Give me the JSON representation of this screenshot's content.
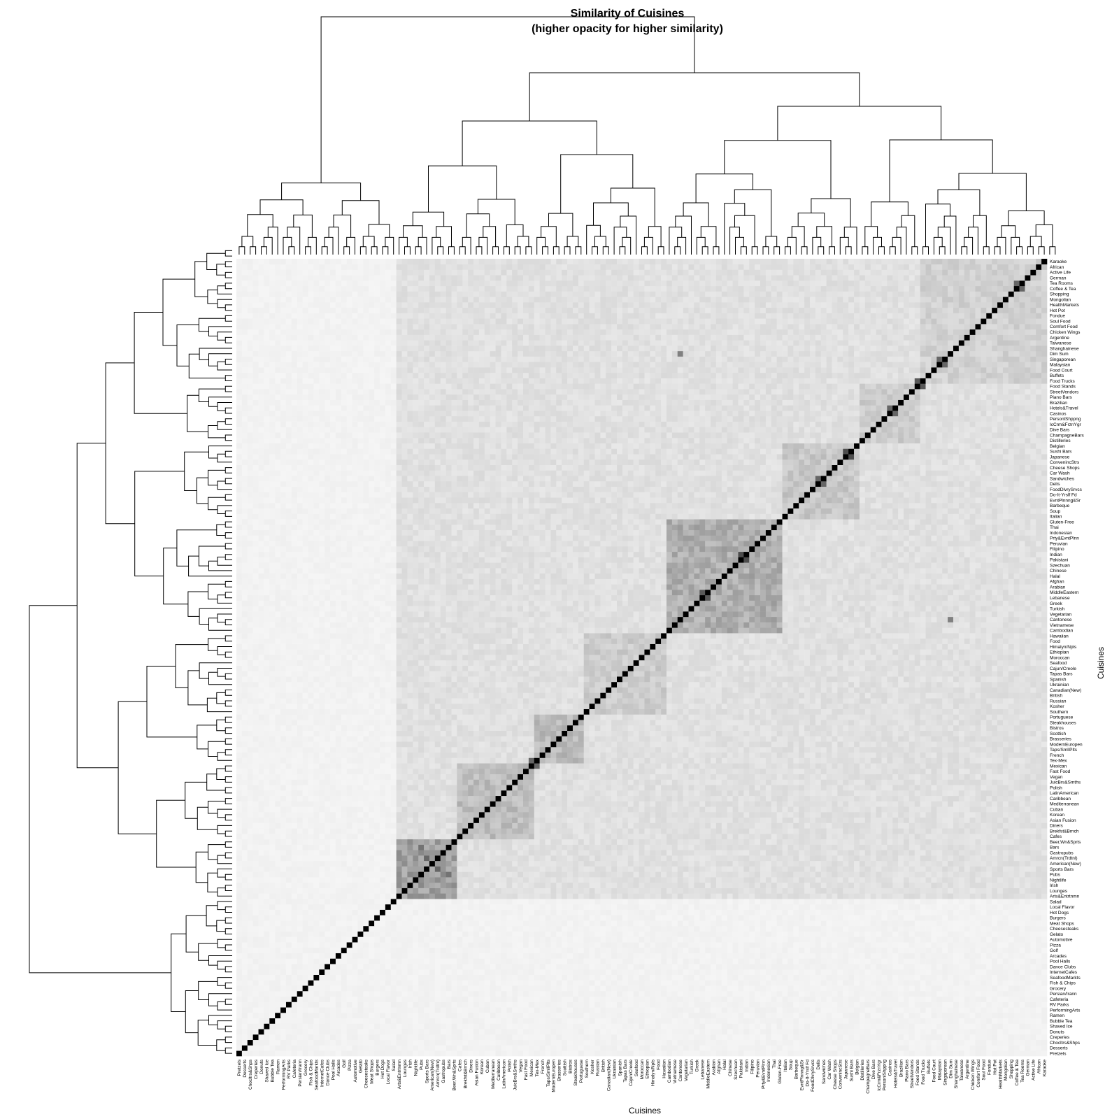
{
  "chart_data": {
    "type": "heatmap",
    "title": "Similarity of Cuisines",
    "subtitle": "(higher opacity for higher similarity)",
    "xlabel": "Cuisines",
    "ylabel": "Cuisines",
    "colors": {
      "low": "#ffffff",
      "high": "#000000"
    },
    "legend": "none",
    "has_row_dendrogram": true,
    "has_column_dendrogram": true,
    "categories": [
      "Pretzels",
      "Desserts",
      "Chocltrs&Shps",
      "Creperies",
      "Donuts",
      "Shaved Ice",
      "Bubble Tea",
      "Ramen",
      "PerformingArts",
      "RV Parks",
      "Cafeteria",
      "Persian/Irann",
      "Grocery",
      "Fish & Chips",
      "SeafoodMarkts",
      "InternetCafes",
      "Dance Clubs",
      "Pool Halls",
      "Arcades",
      "Golf",
      "Pizza",
      "Automotive",
      "Gelato",
      "Cheesesteaks",
      "Meat Shops",
      "Burgers",
      "Hot Dogs",
      "Local Flavor",
      "Salad",
      "Arts&Entrtnmn",
      "Lounges",
      "Irish",
      "Nightlife",
      "Pubs",
      "Sports Bars",
      "American(New)",
      "Amrcn(Trdtnl)",
      "Gastropubs",
      "Bars",
      "Beer,Wn&Sprts",
      "Cafes",
      "Brekfst&Brnch",
      "Diners",
      "Asian Fusion",
      "Korean",
      "Cuban",
      "Mediterranean",
      "Caribbean",
      "LatinAmerican",
      "Polish",
      "JuicBrs&Smths",
      "Vegan",
      "Fast Food",
      "Mexican",
      "Tex-Mex",
      "French",
      "Taps/SmllPlts",
      "ModernEuropen",
      "Brasseries",
      "Scottish",
      "Bistros",
      "Steakhouses",
      "Portuguese",
      "Southern",
      "Kosher",
      "Russian",
      "British",
      "Canadian(New)",
      "Ukrainian",
      "Spanish",
      "Tapas Bars",
      "Cajun/Creole",
      "Seafood",
      "Moroccan",
      "Ethiopian",
      "Himalyn/Npls",
      "Food",
      "Hawaiian",
      "Cambodian",
      "Vietnamese",
      "Cantonese",
      "Vegetarian",
      "Turkish",
      "Greek",
      "Lebanese",
      "MiddleEastern",
      "Arabian",
      "Afghan",
      "Halal",
      "Chinese",
      "Szechuan",
      "Pakistani",
      "Indian",
      "Filipino",
      "Peruvian",
      "Prty&EvntPlnn",
      "Indonesian",
      "Thai",
      "Gluten-Free",
      "Italian",
      "Soup",
      "Barbeque",
      "EvntPlnnng&Sr",
      "Do-It-Yrslf Fd",
      "FoodDlvrySrvcs",
      "Delis",
      "Sandwiches",
      "Car Wash",
      "Cheese Shops",
      "ConvenincStrs",
      "Japanese",
      "Sushi Bars",
      "Belgian",
      "Distilleries",
      "ChampagneBars",
      "Dive Bars",
      "IcCrm&FrznYgr",
      "PersonlShppng",
      "Casinos",
      "Hotels&Travel",
      "Brazilian",
      "Piano Bars",
      "StreetVendors",
      "Food Stands",
      "Food Trucks",
      "Buffets",
      "Food Court",
      "Malaysian",
      "Singaporean",
      "Dim Sum",
      "Shanghainese",
      "Taiwanese",
      "Argentine",
      "Chicken Wings",
      "Comfort Food",
      "Soul Food",
      "Fondue",
      "Hot Pot",
      "HealthMarkets",
      "Mongolian",
      "Shopping",
      "Coffee & Tea",
      "Tea Rooms",
      "German",
      "Active Life",
      "African",
      "Karaoke"
    ],
    "value_range": [
      0,
      1
    ],
    "diagonal_value": 1,
    "block_similarity": [
      {
        "rows": [
          29,
          39
        ],
        "cols": [
          29,
          39
        ],
        "value": 0.38
      },
      {
        "rows": [
          40,
          53
        ],
        "cols": [
          40,
          53
        ],
        "value": 0.26
      },
      {
        "rows": [
          54,
          62
        ],
        "cols": [
          54,
          62
        ],
        "value": 0.27
      },
      {
        "rows": [
          63,
          77
        ],
        "cols": [
          63,
          77
        ],
        "value": 0.2
      },
      {
        "rows": [
          78,
          98
        ],
        "cols": [
          78,
          98
        ],
        "value": 0.32
      },
      {
        "rows": [
          99,
          112
        ],
        "cols": [
          99,
          112
        ],
        "value": 0.22
      },
      {
        "rows": [
          113,
          123
        ],
        "cols": [
          113,
          123
        ],
        "value": 0.2
      },
      {
        "rows": [
          124,
          148
        ],
        "cols": [
          124,
          148
        ],
        "value": 0.18
      },
      {
        "rows": [
          29,
          148
        ],
        "cols": [
          29,
          148
        ],
        "value": 0.12
      },
      {
        "rows": [
          0,
          28
        ],
        "cols": [
          0,
          148
        ],
        "value": 0.05
      }
    ],
    "notable_pairs": [
      {
        "a": "Sushi Bars",
        "b": "Japanese",
        "value": 0.7
      },
      {
        "a": "Food Trucks",
        "b": "Food Stands",
        "value": 0.65
      },
      {
        "a": "Casinos",
        "b": "Hotels&Travel",
        "value": 0.6
      },
      {
        "a": "Coffee & Tea",
        "b": "Tea Rooms",
        "value": 0.6
      },
      {
        "a": "Pakistani",
        "b": "Indian",
        "value": 0.7
      },
      {
        "a": "Lebanese",
        "b": "MiddleEastern",
        "value": 0.65
      },
      {
        "a": "Sports Bars",
        "b": "Amrcn(Trdtnl)",
        "value": 0.6
      },
      {
        "a": "Pubs",
        "b": "Bars",
        "value": 0.55
      },
      {
        "a": "Delis",
        "b": "Sandwiches",
        "value": 0.6
      },
      {
        "a": "Malaysian",
        "b": "Singaporean",
        "value": 0.6
      },
      {
        "a": "Dim Sum",
        "b": "Cantonese",
        "value": 0.5
      },
      {
        "a": "Mexican",
        "b": "Tex-Mex",
        "value": 0.6
      }
    ]
  }
}
